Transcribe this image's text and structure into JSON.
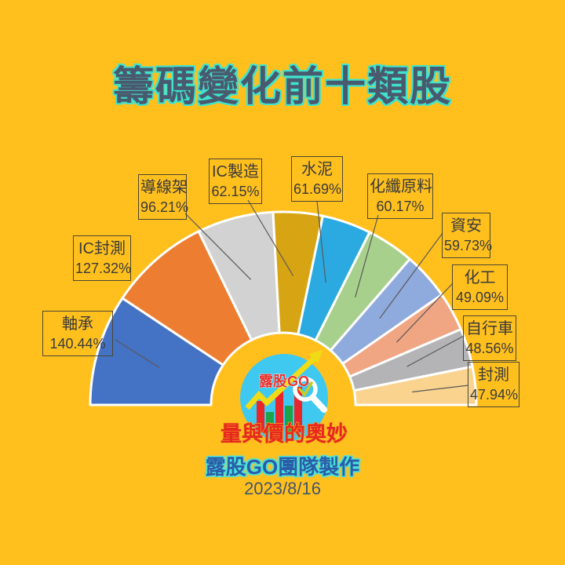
{
  "page": {
    "background_color": "#FFC01E"
  },
  "title": {
    "text": "籌碼變化前十類股",
    "fill_color": "#4A5A6E",
    "outline_color": "#3EE3CD"
  },
  "chart_data": {
    "type": "pie",
    "variant": "half-donut",
    "title": "籌碼變化前十類股",
    "angle_span_deg": 180,
    "order": "largest first, drawn left (180°) to right (0°)",
    "inner_radius_ratio": 0.37,
    "unit": "%",
    "legend_position": "boxed callouts with leader lines",
    "points": [
      {
        "name": "軸承",
        "value": 140.44,
        "display": "140.44%",
        "color": "#4472C4"
      },
      {
        "name": "IC封測",
        "value": 127.32,
        "display": "127.32%",
        "color": "#ED7D31"
      },
      {
        "name": "導線架",
        "value": 96.21,
        "display": "96.21%",
        "color": "#D2D2D2"
      },
      {
        "name": "IC製造",
        "value": 62.15,
        "display": "62.15%",
        "color": "#D7A413"
      },
      {
        "name": "水泥",
        "value": 61.69,
        "display": "61.69%",
        "color": "#2BA9E1"
      },
      {
        "name": "化纖原料",
        "value": 60.17,
        "display": "60.17%",
        "color": "#A8D08D"
      },
      {
        "name": "資安",
        "value": 59.73,
        "display": "59.73%",
        "color": "#8FAADC"
      },
      {
        "name": "化工",
        "value": 49.09,
        "display": "49.09%",
        "color": "#F0A583"
      },
      {
        "name": "自行車",
        "value": 48.56,
        "display": "48.56%",
        "color": "#B4B4B7"
      },
      {
        "name": "封測",
        "value": 47.94,
        "display": "47.94%",
        "color": "#FAD38E"
      }
    ],
    "segment_stroke_color": "#FFFFFF",
    "leader_line_color": "#595959"
  },
  "logo": {
    "brand": "露股GO",
    "slogan": "量與價的奧妙",
    "circle_color": "#3FC8F0",
    "brand_color": "#E6322E",
    "slogan_fill": "#E7281E",
    "slogan_outline": "#F5A623",
    "bar_red": "#E8262C",
    "bar_green": "#1FA34A",
    "arrow_color": "#F0DC16",
    "magnifier_color": "#FFFFFF",
    "check_color": "#C9CC22"
  },
  "footer": {
    "credit": "露股GO團隊製作",
    "date": "2023/8/16"
  }
}
